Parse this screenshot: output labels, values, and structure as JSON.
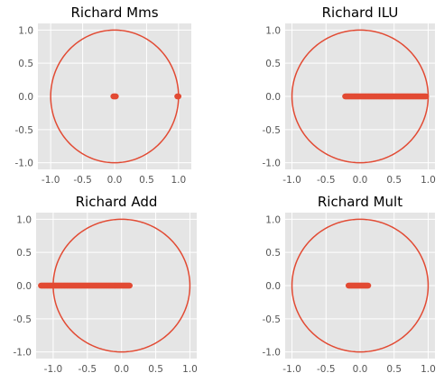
{
  "colors": {
    "plot_background": "#e5e5e5",
    "grid": "#ffffff",
    "tick_text": "#555555",
    "series": "#e24a33"
  },
  "chart_data": [
    {
      "type": "scatter",
      "title": "Richard Mms",
      "xlim": [
        -1.2,
        1.2
      ],
      "ylim": [
        -1.1,
        1.1
      ],
      "x_ticks": [
        "-1.0",
        "-0.5",
        "0.0",
        "0.5",
        "1.0"
      ],
      "y_ticks": [
        "1.0",
        "0.5",
        "0.0",
        "-0.5",
        "-1.0"
      ],
      "grid": true,
      "unit_circle": true,
      "points": [
        {
          "x": -0.02,
          "y": 0.0
        },
        {
          "x": -0.01,
          "y": 0.0
        },
        {
          "x": 0.0,
          "y": 0.0
        },
        {
          "x": 0.01,
          "y": 0.0
        },
        {
          "x": 0.02,
          "y": 0.0
        },
        {
          "x": 0.98,
          "y": 0.0
        },
        {
          "x": 0.99,
          "y": 0.0
        },
        {
          "x": 1.0,
          "y": 0.0
        }
      ]
    },
    {
      "type": "scatter",
      "title": "Richard ILU",
      "xlim": [
        -1.1,
        1.1
      ],
      "ylim": [
        -1.1,
        1.1
      ],
      "x_ticks": [
        "-1.0",
        "-0.5",
        "0.0",
        "0.5",
        "1.0"
      ],
      "y_ticks": [
        "1.0",
        "0.5",
        "0.0",
        "-0.5",
        "-1.0"
      ],
      "grid": true,
      "unit_circle": true,
      "points_range": {
        "x_min": -0.22,
        "x_max": 0.97,
        "y": 0.0
      }
    },
    {
      "type": "scatter",
      "title": "Richard Add",
      "xlim": [
        -1.25,
        1.1
      ],
      "ylim": [
        -1.1,
        1.1
      ],
      "x_ticks": [
        "-1.0",
        "-0.5",
        "0.0",
        "0.5",
        "1.0"
      ],
      "y_ticks": [
        "1.0",
        "0.5",
        "0.0",
        "-0.5",
        "-1.0"
      ],
      "grid": true,
      "unit_circle": true,
      "points_range": {
        "x_min": -1.18,
        "x_max": 0.12,
        "y": 0.0
      }
    },
    {
      "type": "scatter",
      "title": "Richard Mult",
      "xlim": [
        -1.1,
        1.1
      ],
      "ylim": [
        -1.1,
        1.1
      ],
      "x_ticks": [
        "-1.0",
        "-0.5",
        "0.0",
        "0.5",
        "1.0"
      ],
      "y_ticks": [
        "1.0",
        "0.5",
        "0.0",
        "-0.5",
        "-1.0"
      ],
      "grid": true,
      "unit_circle": true,
      "points_range": {
        "x_min": -0.17,
        "x_max": 0.12,
        "y": 0.0
      }
    }
  ]
}
